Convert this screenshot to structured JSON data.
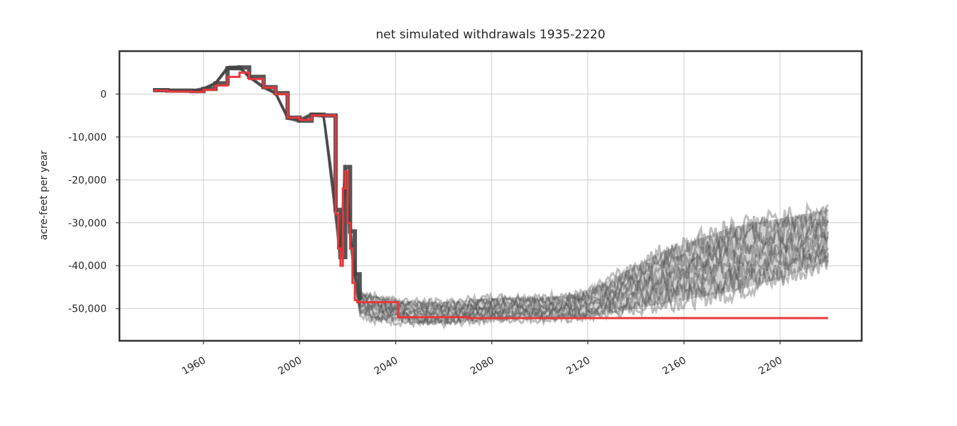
{
  "chart_data": {
    "type": "line",
    "title": "net simulated withdrawals 1935-2220",
    "xlabel": "",
    "ylabel": "acre-feet per year",
    "xlim": [
      1925,
      2234
    ],
    "ylim": [
      -57500,
      10000
    ],
    "x_ticks": [
      1960,
      2000,
      2040,
      2080,
      2120,
      2160,
      2200
    ],
    "x_tick_labels": [
      "1960",
      "2000",
      "2040",
      "2080",
      "2120",
      "2160",
      "2200"
    ],
    "y_ticks": [
      0,
      -10000,
      -20000,
      -30000,
      -40000,
      -50000
    ],
    "y_tick_labels": [
      "0",
      "-10,000",
      "-20,000",
      "-30,000",
      "-40,000",
      "-50,000"
    ],
    "grid": true,
    "series": [
      {
        "name": "",
        "style": "step",
        "color": "#e8373a",
        "x": [
          1939,
          1945,
          1955,
          1960,
          1965,
          1970,
          1975,
          1979,
          1985,
          1990,
          1995,
          2000,
          2005,
          2010,
          2015,
          2016,
          2017,
          2018,
          2019,
          2020,
          2021,
          2022,
          2023,
          2024,
          2041,
          2070,
          2220
        ],
        "y": [
          800,
          600,
          500,
          1000,
          2000,
          4000,
          5000,
          3500,
          1500,
          0,
          -5500,
          -6000,
          -5000,
          -5000,
          -28000,
          -36000,
          -40000,
          -22000,
          -18000,
          -30000,
          -36000,
          -44000,
          -48000,
          -48500,
          -52000,
          -52200,
          -52200
        ]
      },
      {
        "name": "",
        "style": "ensemble",
        "color": "#444444",
        "x": [
          1939,
          1945,
          1955,
          1960,
          1965,
          1970,
          1975,
          1979,
          1985,
          1990,
          1995,
          2000,
          2005,
          2010,
          2015,
          2017,
          2019,
          2021,
          2023,
          2025,
          2030,
          2040,
          2050,
          2060,
          2070,
          2080,
          2090,
          2100,
          2110,
          2120,
          2130,
          2140,
          2150,
          2160,
          2170,
          2180,
          2190,
          2200,
          2210,
          2220
        ],
        "y_mid": [
          900,
          800,
          700,
          1200,
          2500,
          6000,
          6200,
          4000,
          1600,
          200,
          -5500,
          -6200,
          -4800,
          -5000,
          -27000,
          -38000,
          -17000,
          -32000,
          -42000,
          -48000,
          -49500,
          -50500,
          -51000,
          -51000,
          -50500,
          -50000,
          -50000,
          -50000,
          -49500,
          -48500,
          -47000,
          -45000,
          -43000,
          -42000,
          -40000,
          -38000,
          -36000,
          -34000,
          -32000,
          -31000
        ],
        "y_low": [
          700,
          600,
          500,
          1000,
          2300,
          5800,
          6000,
          3800,
          1400,
          0,
          -5800,
          -6500,
          -5100,
          -5300,
          -29000,
          -39500,
          -19000,
          -34000,
          -44000,
          -51000,
          -52500,
          -53000,
          -53500,
          -53500,
          -53000,
          -52500,
          -52500,
          -52500,
          -52500,
          -52000,
          -51000,
          -50000,
          -49000,
          -48000,
          -47000,
          -46000,
          -44500,
          -43000,
          -41000,
          -39000
        ],
        "y_high": [
          1100,
          1000,
          900,
          1400,
          2700,
          6400,
          6500,
          4200,
          1800,
          400,
          -5200,
          -5900,
          -4500,
          -4700,
          -25000,
          -36000,
          -15000,
          -30000,
          -40000,
          -46000,
          -47000,
          -48000,
          -48500,
          -48500,
          -48000,
          -47500,
          -47500,
          -47500,
          -47000,
          -46000,
          -43000,
          -40000,
          -37000,
          -35000,
          -33000,
          -31000,
          -30000,
          -29000,
          -28000,
          -27000
        ]
      }
    ]
  }
}
